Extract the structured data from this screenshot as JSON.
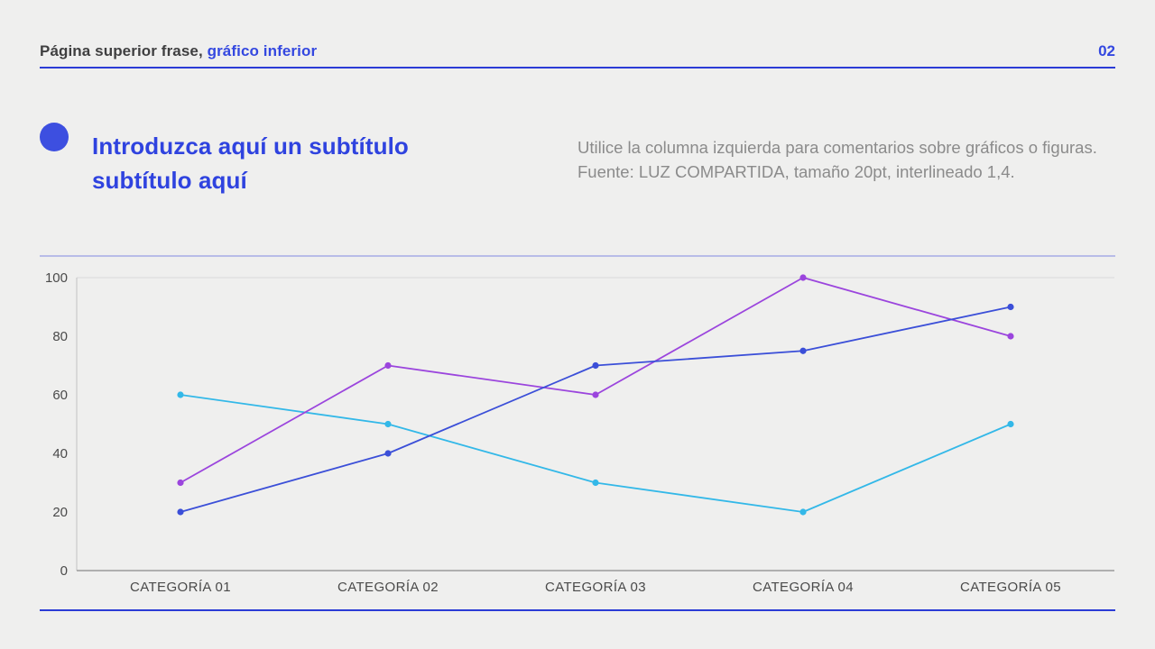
{
  "header": {
    "title_dark": "Página superior frase,",
    "title_accent": " gráfico inferior",
    "page_number": "02"
  },
  "intro": {
    "subtitle": "Introduzca aquí un subtítulo subtítulo aquí",
    "note": "Utilice la columna izquierda para comentarios sobre gráficos o figuras. Fuente: LUZ COMPARTIDA, tamaño 20pt, interlineado 1,4."
  },
  "colors": {
    "accent_blue": "#3448e0",
    "rule_blue": "#2b3cd6",
    "divider_lavender": "#b8bce8",
    "axis_gray": "#9a9a9a",
    "tick_text": "#4a4a4a",
    "background": "#efefee",
    "series_blue": "#3b4fd8",
    "series_purple": "#9b45dd",
    "series_cyan": "#33b8e8"
  },
  "chart_data": {
    "type": "line",
    "title": "",
    "xlabel": "",
    "ylabel": "",
    "categories": [
      "CATEGORÍA 01",
      "CATEGORÍA 02",
      "CATEGORÍA 03",
      "CATEGORÍA 04",
      "CATEGORÍA 05"
    ],
    "series": [
      {
        "name": "series-cyan",
        "color": "#33b8e8",
        "values": [
          60,
          50,
          30,
          20,
          50
        ]
      },
      {
        "name": "series-purple",
        "color": "#9b45dd",
        "values": [
          30,
          70,
          60,
          100,
          80
        ]
      },
      {
        "name": "series-blue",
        "color": "#3b4fd8",
        "values": [
          20,
          40,
          70,
          75,
          90
        ]
      }
    ],
    "yticks": [
      0,
      20,
      40,
      60,
      80,
      100
    ],
    "ylim": [
      0,
      100
    ],
    "grid": false,
    "legend": "none"
  }
}
